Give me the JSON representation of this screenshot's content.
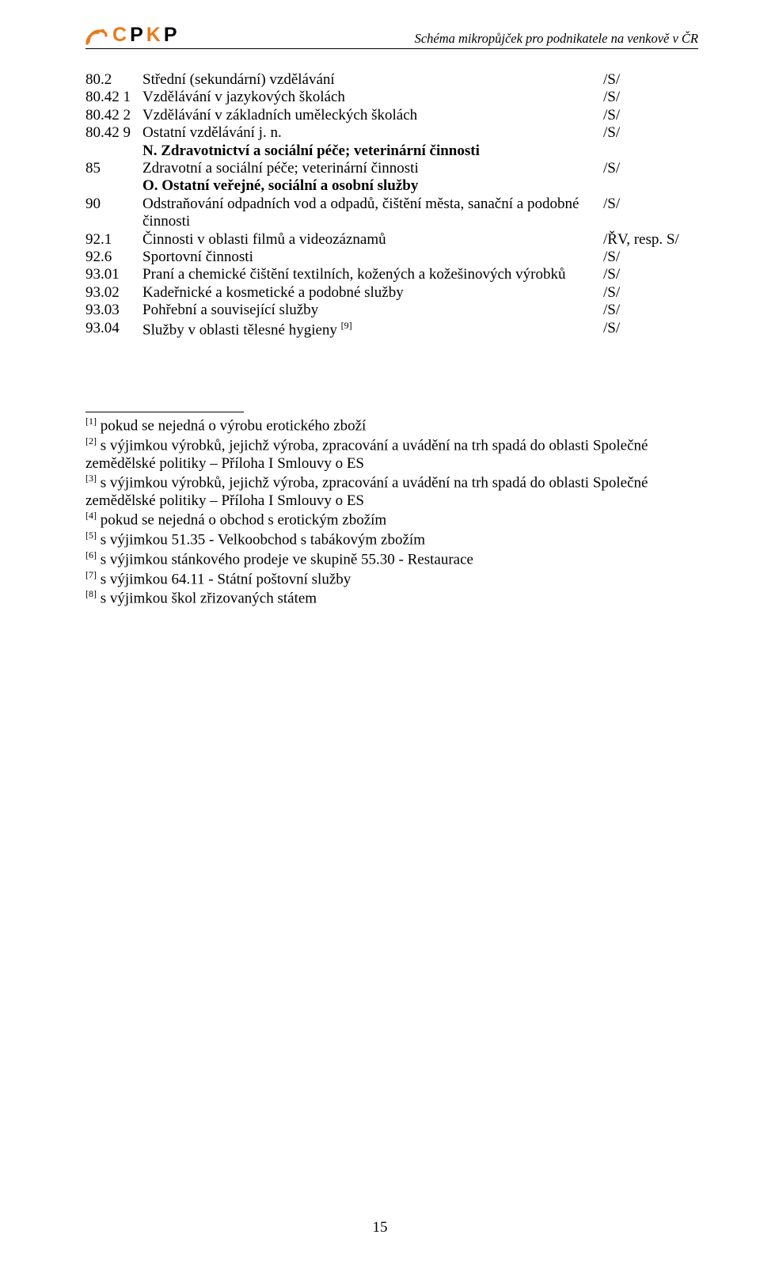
{
  "header": {
    "logo_text_1": "C",
    "logo_text_2": "P",
    "logo_text_3": "K",
    "logo_text_4": "P",
    "title": "Schéma mikropůjček pro podnikatele na venkově v ČR"
  },
  "rows": [
    {
      "code": "80.2",
      "desc": "Střední (sekundární) vzdělávání",
      "tag": "/S/",
      "bold": false
    },
    {
      "code": "80.42 1",
      "desc": "Vzdělávání v jazykových školách",
      "tag": "/S/",
      "bold": false
    },
    {
      "code": "80.42 2",
      "desc": "Vzdělávání v základních uměleckých školách",
      "tag": "/S/",
      "bold": false
    },
    {
      "code": "80.42 9",
      "desc": "Ostatní vzdělávání j. n.",
      "tag": "/S/",
      "bold": false
    },
    {
      "code": "",
      "desc": "N. Zdravotnictví a sociální péče; veterinární činnosti",
      "tag": "",
      "bold": true
    },
    {
      "code": "85",
      "desc": "Zdravotní a sociální péče; veterinární činnosti",
      "tag": "/S/",
      "bold": false
    },
    {
      "code": "",
      "desc": "O. Ostatní veřejné, sociální a osobní služby",
      "tag": "",
      "bold": true
    },
    {
      "code": "90",
      "desc": "Odstraňování odpadních vod a odpadů, čištění města, sanační a podobné činnosti",
      "tag": "/S/",
      "bold": false
    },
    {
      "code": "92.1",
      "desc": "Činnosti v oblasti filmů a videozáznamů",
      "tag": "/ŘV, resp. S/",
      "bold": false
    },
    {
      "code": "92.6",
      "desc": "Sportovní činnosti",
      "tag": "/S/",
      "bold": false
    },
    {
      "code": "93.01",
      "desc": "Praní a chemické čištění textilních, kožených a kožešinových výrobků",
      "tag": "/S/",
      "bold": false
    },
    {
      "code": "93.02",
      "desc": "Kadeřnické a kosmetické a podobné služby",
      "tag": "/S/",
      "bold": false
    },
    {
      "code": "93.03",
      "desc": "Pohřební a související služby",
      "tag": "/S/",
      "bold": false
    },
    {
      "code": "93.04",
      "desc": "Služby v oblasti tělesné hygieny ",
      "tag": "/S/",
      "bold": false,
      "sup": "[9]"
    }
  ],
  "footnotes": [
    {
      "n": "[1]",
      "text": " pokud se nejedná o výrobu erotického zboží"
    },
    {
      "n": "[2]",
      "text": " s výjimkou výrobků, jejichž výroba, zpracování a uvádění na trh spadá do oblasti Společné zemědělské politiky – Příloha I Smlouvy o ES"
    },
    {
      "n": "[3]",
      "text": " s výjimkou výrobků, jejichž výroba, zpracování a uvádění na trh spadá do oblasti Společné zemědělské politiky – Příloha I Smlouvy o ES"
    },
    {
      "n": "[4]",
      "text": " pokud se nejedná o obchod s erotickým zbožím"
    },
    {
      "n": "[5]",
      "text": " s výjimkou 51.35 - Velkoobchod s tabákovým zbožím"
    },
    {
      "n": "[6]",
      "text": " s výjimkou stánkového prodeje ve skupině 55.30 - Restaurace"
    },
    {
      "n": "[7]",
      "text": " s výjimkou 64.11 - Státní poštovní služby"
    },
    {
      "n": "[8]",
      "text": " s výjimkou škol zřizovaných státem"
    }
  ],
  "page_number": "15",
  "colors": {
    "orange": "#e87a1a",
    "text": "#000000",
    "background": "#ffffff"
  }
}
